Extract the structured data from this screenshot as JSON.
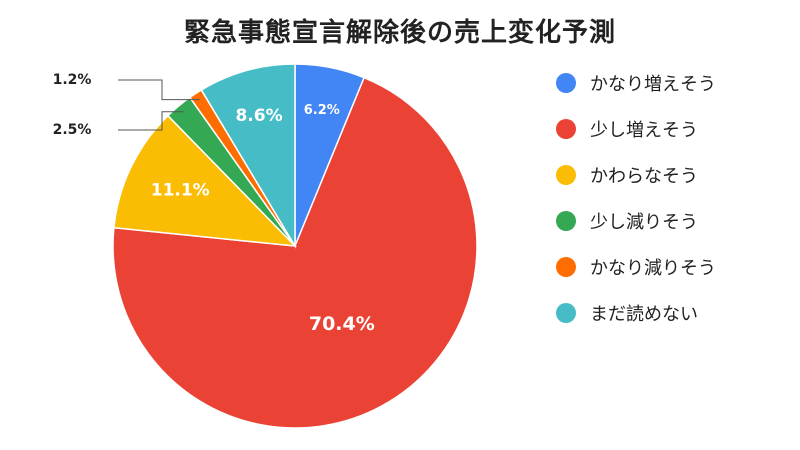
{
  "chart_data": {
    "type": "pie",
    "title": "緊急事態宣言解除後の売上変化予測",
    "slices": [
      {
        "label": "かなり増えそう",
        "value": 6.2,
        "display": "6.2%",
        "color": "#4285F4"
      },
      {
        "label": "少し増えそう",
        "value": 70.4,
        "display": "70.4%",
        "color": "#EA4335"
      },
      {
        "label": "かわらなそう",
        "value": 11.1,
        "display": "11.1%",
        "color": "#FBBC04"
      },
      {
        "label": "少し減りそう",
        "value": 2.5,
        "display": "2.5%",
        "color": "#34A853"
      },
      {
        "label": "かなり減りそう",
        "value": 1.2,
        "display": "1.2%",
        "color": "#FF6D01"
      },
      {
        "label": "まだ読めない",
        "value": 8.6,
        "display": "8.6%",
        "color": "#46BDC6"
      }
    ],
    "legend_position": "right",
    "start_angle_deg": 0,
    "direction": "clockwise"
  }
}
